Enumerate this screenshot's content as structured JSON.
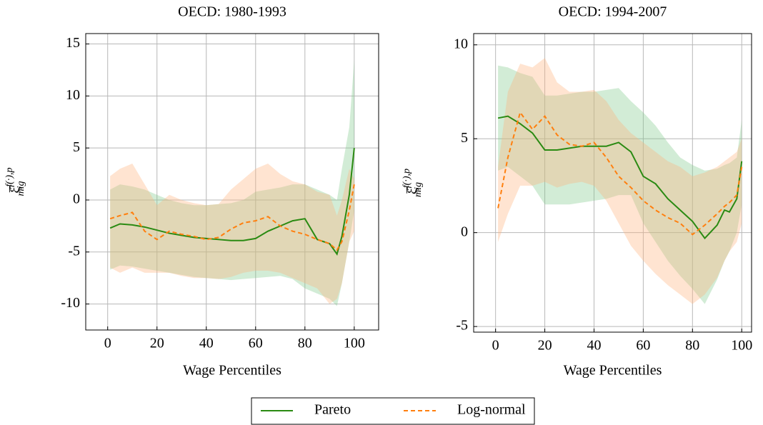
{
  "chart_data": [
    {
      "type": "line",
      "title": "OECD: 1980-1993",
      "xlabel": "Wage Percentiles",
      "ylabel": {
        "base": "ξ̂",
        "sup": "f(·),p",
        "sub": "mig"
      },
      "x": [
        1,
        5,
        10,
        15,
        20,
        25,
        30,
        35,
        40,
        45,
        50,
        55,
        60,
        65,
        70,
        75,
        80,
        85,
        90,
        93,
        95,
        98,
        100
      ],
      "xlim": [
        -8.9,
        109.9
      ],
      "ylim": [
        -12.5,
        16
      ],
      "xticks": [
        0,
        20,
        40,
        60,
        80,
        100
      ],
      "yticks": [
        -10,
        -5,
        0,
        5,
        10,
        15
      ],
      "grid": true,
      "series": [
        {
          "name": "Pareto",
          "color": "#2a8a12",
          "band_color": "#7fc98a",
          "dash": false,
          "values": [
            -2.7,
            -2.3,
            -2.4,
            -2.6,
            -2.9,
            -3.2,
            -3.4,
            -3.6,
            -3.7,
            -3.8,
            -3.9,
            -3.9,
            -3.7,
            -3.0,
            -2.5,
            -2.0,
            -1.8,
            -3.8,
            -4.2,
            -5.2,
            -3.5,
            0.5,
            5
          ],
          "lower": [
            -6.7,
            -6.3,
            -6.4,
            -6.6,
            -6.8,
            -7.0,
            -7.2,
            -7.4,
            -7.5,
            -7.6,
            -7.7,
            -7.6,
            -7.5,
            -7.4,
            -7.3,
            -7.6,
            -8.5,
            -9.0,
            -9.5,
            -10.2,
            -8.0,
            -4,
            -1
          ],
          "upper": [
            1.0,
            1.5,
            1.3,
            1.0,
            0.5,
            0,
            -0.3,
            -0.5,
            -0.5,
            -0.4,
            -0.3,
            0,
            0.8,
            1.0,
            1.2,
            1.5,
            1.5,
            1.0,
            0.5,
            0,
            3,
            7,
            13.5
          ]
        },
        {
          "name": "Log-normal",
          "color": "#ff7f0e",
          "band_color": "#ffb27a",
          "dash": true,
          "values": [
            -1.8,
            -1.5,
            -1.2,
            -3.0,
            -3.8,
            -3.0,
            -3.3,
            -3.5,
            -3.8,
            -3.6,
            -2.8,
            -2.2,
            -2.0,
            -1.6,
            -2.5,
            -3.0,
            -3.3,
            -3.8,
            -4.2,
            -4.8,
            -4.0,
            -1.0,
            1.5
          ],
          "lower": [
            -6.5,
            -7.0,
            -6.5,
            -7.0,
            -7.0,
            -7.0,
            -7.3,
            -7.5,
            -7.5,
            -7.6,
            -7.4,
            -7.0,
            -6.8,
            -6.8,
            -7.0,
            -7.5,
            -8.0,
            -8.5,
            -10,
            -9.5,
            -8,
            -4,
            -3
          ],
          "upper": [
            2.3,
            3.0,
            3.5,
            1.5,
            -0.5,
            0.5,
            0,
            -0.3,
            -0.5,
            -0.4,
            1.0,
            2.0,
            3.0,
            3.5,
            2.5,
            1.8,
            1.5,
            0.8,
            0.5,
            -1.5,
            0,
            3,
            2
          ]
        }
      ]
    },
    {
      "type": "line",
      "title": "OECD: 1994-2007",
      "xlabel": "Wage Percentiles",
      "ylabel": {
        "base": "ξ̂",
        "sup": "f(·),p",
        "sub": "mig"
      },
      "x": [
        1,
        5,
        10,
        15,
        20,
        25,
        30,
        35,
        40,
        45,
        50,
        55,
        60,
        65,
        70,
        75,
        80,
        85,
        90,
        93,
        95,
        98,
        100
      ],
      "xlim": [
        -8.9,
        104
      ],
      "ylim": [
        -5.3,
        10.6
      ],
      "xticks": [
        0,
        20,
        40,
        60,
        80,
        100
      ],
      "yticks": [
        -5,
        0,
        5,
        10
      ],
      "grid": true,
      "series": [
        {
          "color": "#2a8a12",
          "band_color": "#7fc98a",
          "dash": false,
          "values": [
            6.1,
            6.2,
            5.8,
            5.3,
            4.4,
            4.4,
            4.5,
            4.6,
            4.6,
            4.6,
            4.8,
            4.3,
            3.0,
            2.6,
            1.8,
            1.2,
            0.6,
            -0.3,
            0.4,
            1.2,
            1.1,
            1.8,
            3.8
          ],
          "lower": [
            3.3,
            3.5,
            3.0,
            2.5,
            1.5,
            1.5,
            1.5,
            1.6,
            1.7,
            1.8,
            2.0,
            2.0,
            0.5,
            -0.5,
            -1.5,
            -2.3,
            -3.0,
            -3.8,
            -2.5,
            -1.5,
            -1,
            0,
            1.5
          ],
          "upper": [
            8.9,
            8.8,
            8.5,
            8.3,
            7.3,
            7.3,
            7.4,
            7.5,
            7.5,
            7.6,
            7.7,
            7.0,
            6.4,
            5.7,
            4.8,
            4.0,
            3.6,
            3.3,
            3.4,
            3.6,
            3.7,
            4,
            6
          ]
        },
        {
          "color": "#ff7f0e",
          "band_color": "#ffb27a",
          "dash": true,
          "values": [
            1.3,
            4.0,
            6.4,
            5.5,
            6.2,
            5.2,
            4.7,
            4.6,
            4.8,
            4.0,
            3.0,
            2.4,
            1.7,
            1.2,
            0.8,
            0.5,
            -0.1,
            0.4,
            1.0,
            1.4,
            1.6,
            2.0,
            3.5
          ],
          "lower": [
            -0.5,
            1.0,
            2.5,
            2.5,
            2.7,
            2.4,
            2.6,
            2.7,
            2.5,
            1.7,
            0.5,
            -0.7,
            -1.5,
            -2.2,
            -2.8,
            -3.3,
            -3.8,
            -3.3,
            -2.4,
            -1.5,
            -1.0,
            -0.5,
            0.5
          ],
          "upper": [
            3.5,
            7.5,
            9.0,
            8.8,
            9.3,
            8.0,
            7.5,
            7.5,
            7.6,
            7.0,
            6.0,
            5.3,
            4.8,
            4.3,
            3.8,
            3.5,
            3.0,
            3.2,
            3.5,
            3.8,
            4.0,
            4.3,
            5.0
          ]
        }
      ]
    }
  ]
}
